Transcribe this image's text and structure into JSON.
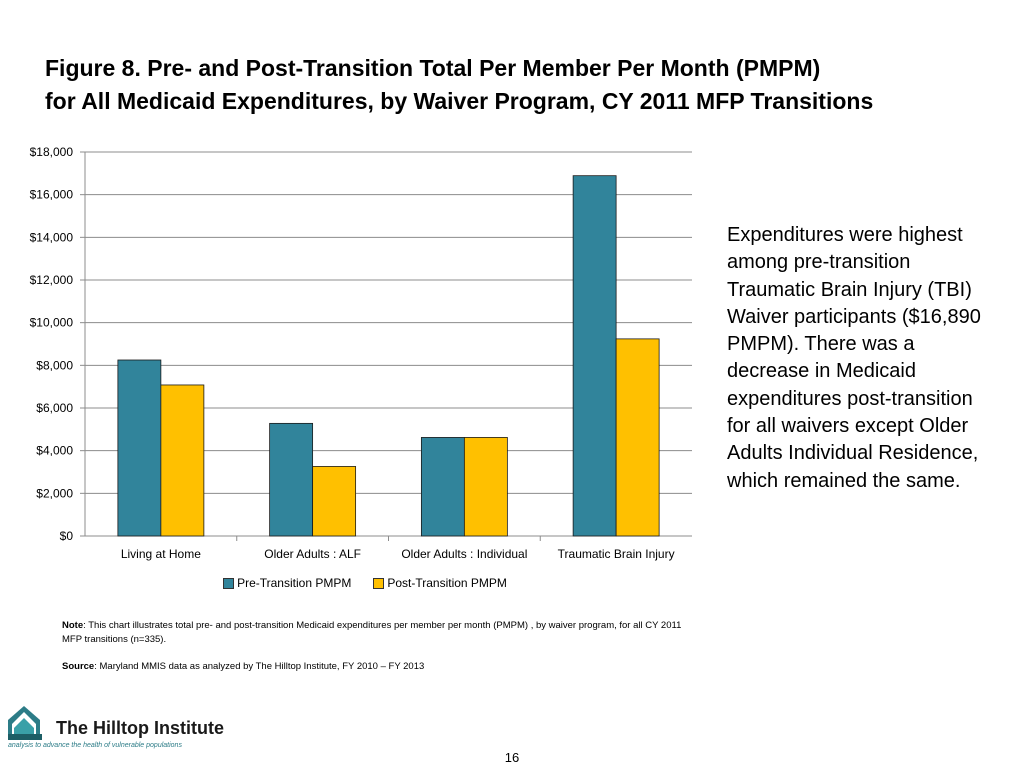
{
  "title": {
    "line1": "Figure 8. Pre- and Post-Transition Total Per Member Per Month (PMPM)",
    "line2": "for All Medicaid Expenditures, by Waiver Program, CY 2011 MFP Transitions"
  },
  "chart_data": {
    "type": "bar",
    "categories": [
      "Living at Home",
      "Older Adults : ALF",
      "Older Adults : Individual",
      "Traumatic Brain Injury"
    ],
    "series": [
      {
        "name": "Pre-Transition PMPM",
        "values": [
          8250,
          5280,
          4620,
          16890
        ],
        "color": "#31849B"
      },
      {
        "name": "Post-Transition PMPM",
        "values": [
          7080,
          3260,
          4620,
          9240
        ],
        "color": "#FFC000"
      }
    ],
    "y_ticks": [
      "$0",
      "$2,000",
      "$4,000",
      "$6,000",
      "$8,000",
      "$10,000",
      "$12,000",
      "$14,000",
      "$16,000",
      "$18,000"
    ],
    "ylim": [
      0,
      18000
    ],
    "grid": true,
    "legend": "bottom-center",
    "xlabel": "",
    "ylabel": ""
  },
  "side_text": "Expenditures were highest among pre-transition Traumatic Brain Injury (TBI) Waiver participants ($16,890 PMPM). There was a decrease in Medicaid expenditures post-transition for all waivers except Older Adults Individual Residence, which remained the same.",
  "notes": {
    "note_label": "Note",
    "note_text": ": This chart illustrates total pre- and post-transition Medicaid expenditures per member per month (PMPM) , by waiver program, for all CY 2011 MFP transitions (n=335).",
    "source_label": "Source",
    "source_text": ": Maryland MMIS data as analyzed by The Hilltop Institute, FY 2010 – FY 2013"
  },
  "logo": {
    "name": "The Hilltop Institute",
    "tagline": "analysis to advance the health of vulnerable populations"
  },
  "page_number": "16"
}
